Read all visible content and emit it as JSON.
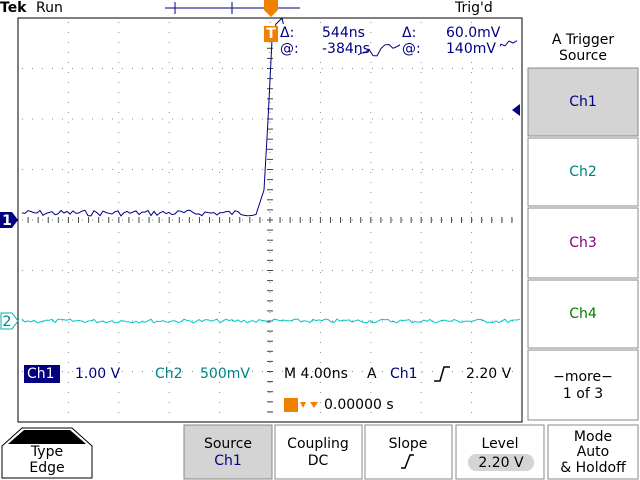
{
  "status": {
    "brand": "Tek",
    "run": "Run",
    "trigger_state": "Trig'd"
  },
  "cursors": [
    {
      "delta_label": "Δ:",
      "delta": "544ns",
      "at_label": "@:",
      "at": "-384ns"
    },
    {
      "delta_label": "Δ:",
      "delta": "60.0mV",
      "at_label": "@:",
      "at": "140mV"
    }
  ],
  "markers": {
    "ch1": "1",
    "ch2": "2",
    "trigger": "T"
  },
  "readout": {
    "ch1_name": "Ch1",
    "ch1_scale": "1.00 V",
    "ch2_name": "Ch2",
    "ch2_scale": "500mV",
    "timebase": "M 4.00ns",
    "trigger_mode": "A",
    "trigger_source": "Ch1",
    "trigger_level": "2.20 V",
    "trigger_position": "0.00000 s"
  },
  "menu": {
    "title": [
      "A Trigger",
      "Source"
    ],
    "items": [
      "Ch1",
      "Ch2",
      "Ch3",
      "Ch4"
    ],
    "more": "−more−",
    "page": "1 of 3"
  },
  "softkeys": [
    {
      "label": "Type",
      "value": "Edge"
    },
    {
      "label": "Source",
      "value": "Ch1"
    },
    {
      "label": "Coupling",
      "value": "DC"
    },
    {
      "label": "Slope"
    },
    {
      "label": "Level",
      "value": "2.20 V"
    },
    {
      "label": "Mode",
      "value": "Auto",
      "extra": "& Holdoff"
    }
  ]
}
